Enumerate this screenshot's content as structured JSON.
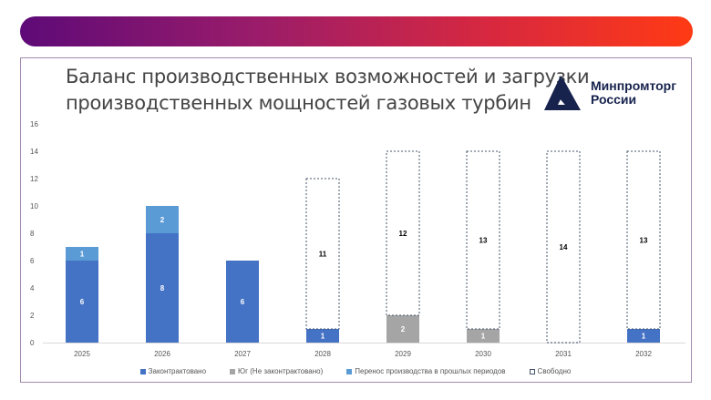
{
  "title_line1": "Баланс производственных возможностей и загрузки",
  "title_line2": "производственных мощностей газовых турбин",
  "logo": {
    "line1": "Минпромторг",
    "line2": "России"
  },
  "colors": {
    "contracted": "#4472c4",
    "south": "#a5a5a5",
    "transfer": "#5b9bd5",
    "free": "#ffffff"
  },
  "chart_data": {
    "type": "bar",
    "stacked": true,
    "categories": [
      "2025",
      "2026",
      "2027",
      "2028",
      "2029",
      "2030",
      "2031",
      "2032"
    ],
    "series": [
      {
        "name": "Законтрактовано",
        "values": [
          6,
          8,
          6,
          1,
          0,
          0,
          0,
          1
        ]
      },
      {
        "name": "Юг (Не законтрактовано)",
        "values": [
          0,
          0,
          0,
          0,
          2,
          1,
          0,
          0
        ]
      },
      {
        "name": "Перенос производства в прошлых периодов",
        "values": [
          1,
          2,
          0,
          0,
          0,
          0,
          0,
          0
        ]
      },
      {
        "name": "Свободно",
        "values": [
          0,
          0,
          0,
          11,
          12,
          13,
          14,
          13
        ]
      }
    ],
    "ylim": [
      0,
      16
    ],
    "yticks": [
      "0",
      "2",
      "4",
      "6",
      "8",
      "10",
      "12",
      "14",
      "16"
    ],
    "legend_position": "bottom",
    "grid": false
  }
}
